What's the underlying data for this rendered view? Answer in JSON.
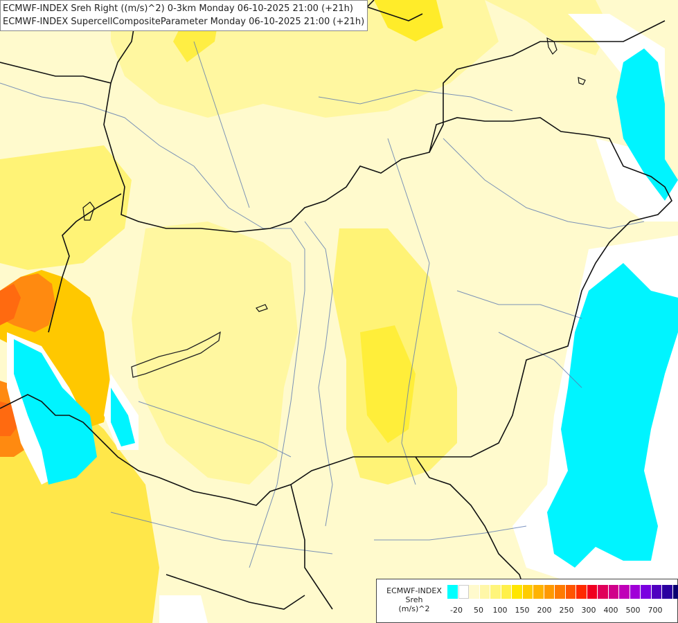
{
  "title": {
    "line1": "ECMWF-INDEX Sreh Right ((m/s)^2) 0-3km Monday 06-10-2025 21:00 (+21h)",
    "line2": "ECMWF-INDEX SupercellCompositeParameter Monday 06-10-2025 21:00 (+21h)"
  },
  "legend": {
    "title_line1": "ECMWF-INDEX",
    "title_line2": "Sreh",
    "title_line3": "(m/s)^2",
    "colors": [
      "#00ffff",
      "#ffffff",
      "#fffacd",
      "#fff7a8",
      "#fff57a",
      "#fff04a",
      "#ffe600",
      "#ffcc00",
      "#ffb300",
      "#ff9900",
      "#ff7a00",
      "#ff5500",
      "#ff2a00",
      "#f00020",
      "#e0005a",
      "#d0008a",
      "#c000b8",
      "#a000d8",
      "#7a00e0",
      "#5000c0",
      "#2a00a0",
      "#0a0070"
    ],
    "ticks": [
      "-20",
      "50",
      "100",
      "150",
      "200",
      "250",
      "300",
      "400",
      "500",
      "700"
    ]
  }
}
